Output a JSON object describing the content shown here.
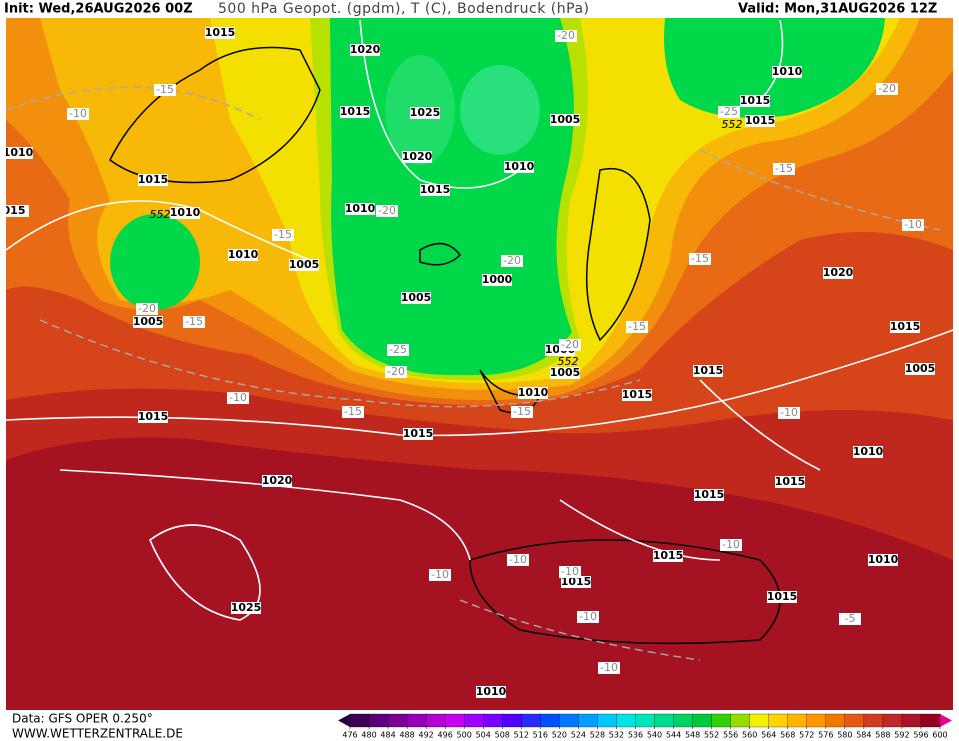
{
  "header": {
    "init": "Init: Wed,26AUG2026 00Z",
    "title": "500 hPa Geopot. (gpdm), T (C), Bodendruck (hPa)",
    "valid": "Valid: Mon,31AUG2026 12Z"
  },
  "footer": {
    "data": "Data: GFS OPER 0.250°",
    "site": "WWW.WETTERZENTRALE.DE"
  },
  "map": {
    "isobar_labels": [
      "1015",
      "1020",
      "1015",
      "1025",
      "1005",
      "1010",
      "1015",
      "1015",
      "1010",
      "1015",
      "1020",
      "1015",
      "1010",
      "1010",
      "1010",
      "1010",
      "1005",
      "1000",
      "1005",
      "1005",
      "1020",
      "1015",
      "1005",
      "1000",
      "1005",
      "1015",
      "1010",
      "1015",
      "1015",
      "1015",
      "1010",
      "1020",
      "1015",
      "1015",
      "1015",
      "1010",
      "1015",
      "1015",
      "1025",
      "1010",
      "015"
    ],
    "temperature_labels": [
      "-15",
      "-10",
      "-20",
      "-20",
      "-25",
      "-15",
      "-20",
      "-15",
      "-20",
      "-15",
      "-10",
      "-20",
      "-15",
      "-15",
      "-25",
      "-20",
      "-20",
      "-10",
      "-15",
      "-15",
      "-10",
      "-10",
      "-10",
      "-10",
      "-10",
      "-10",
      "-5",
      "-10"
    ],
    "geopotential_labels": [
      "552",
      "552",
      "552"
    ]
  },
  "legend": {
    "ticks": [
      476,
      480,
      484,
      488,
      492,
      496,
      500,
      504,
      508,
      512,
      516,
      520,
      524,
      528,
      532,
      536,
      540,
      544,
      548,
      552,
      556,
      560,
      564,
      568,
      572,
      576,
      580,
      584,
      588,
      592,
      596,
      600
    ],
    "colors": [
      "#3c0050",
      "#5a0078",
      "#7a0096",
      "#9600b4",
      "#b400d2",
      "#c800f0",
      "#a000ff",
      "#7800ff",
      "#5000ff",
      "#2828ff",
      "#0050ff",
      "#0078ff",
      "#00a0ff",
      "#00c8ff",
      "#00e6e6",
      "#00e6b4",
      "#00dc8c",
      "#00d264",
      "#00c83c",
      "#32d200",
      "#96dc00",
      "#f0f000",
      "#ffd200",
      "#ffb400",
      "#ff9600",
      "#f07800",
      "#e65a14",
      "#d23c1e",
      "#be2828",
      "#aa1428",
      "#96001e"
    ],
    "under_color": "#280040",
    "over_color": "#e6008c"
  }
}
